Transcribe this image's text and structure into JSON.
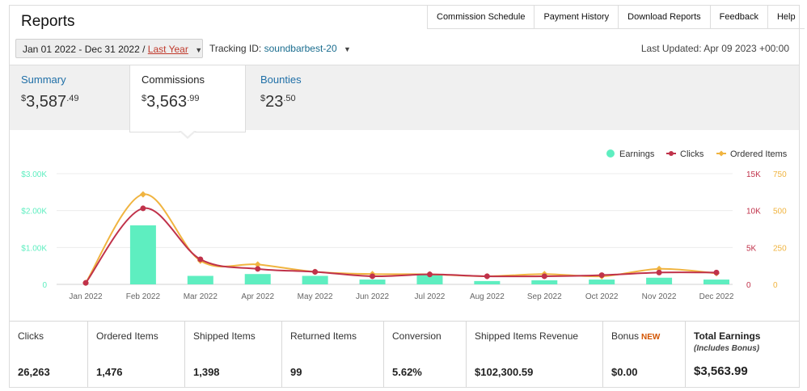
{
  "header": {
    "title": "Reports",
    "nav": [
      "Commission Schedule",
      "Payment History",
      "Download Reports",
      "Feedback",
      "Help"
    ]
  },
  "filters": {
    "date_range": "Jan 01 2022 - Dec 31 2022 /",
    "date_preset": "Last Year",
    "tracking_label": "Tracking ID:",
    "tracking_id": "soundbarbest-20",
    "last_updated": "Last Updated: Apr 09 2023 +00:00"
  },
  "tabs": [
    {
      "label": "Summary",
      "dollar": "$",
      "whole": "3,587",
      "cents": ".49",
      "active": false
    },
    {
      "label": "Commissions",
      "dollar": "$",
      "whole": "3,563",
      "cents": ".99",
      "active": true
    },
    {
      "label": "Bounties",
      "dollar": "$",
      "whole": "23",
      "cents": ".50",
      "active": false
    }
  ],
  "chart_data": {
    "type": "bar",
    "categories": [
      "Jan 2022",
      "Feb 2022",
      "Mar 2022",
      "Apr 2022",
      "May 2022",
      "Jun 2022",
      "Jul 2022",
      "Aug 2022",
      "Sep 2022",
      "Oct 2022",
      "Nov 2022",
      "Dec 2022"
    ],
    "series": [
      {
        "name": "Earnings",
        "type": "bar",
        "axis": "left",
        "color": "#5eeec0",
        "values": [
          0,
          1600,
          230,
          280,
          230,
          130,
          260,
          90,
          110,
          130,
          180,
          130
        ]
      },
      {
        "name": "Clicks",
        "type": "line",
        "axis": "right1",
        "color": "#c0324a",
        "values": [
          200,
          10300,
          3400,
          2100,
          1700,
          1100,
          1350,
          1100,
          1100,
          1250,
          1600,
          1600
        ]
      },
      {
        "name": "Ordered Items",
        "type": "line",
        "axis": "right2",
        "color": "#f0b440",
        "values": [
          10,
          610,
          160,
          135,
          85,
          70,
          68,
          55,
          70,
          55,
          105,
          75
        ]
      }
    ],
    "left_axis": {
      "ticks": [
        "0",
        "$1.00K",
        "$2.00K",
        "$3.00K"
      ],
      "max": 3000,
      "color": "#5eeec0"
    },
    "right_axis_1": {
      "ticks": [
        "0",
        "5K",
        "10K",
        "15K"
      ],
      "max": 15000,
      "color": "#c0324a"
    },
    "right_axis_2": {
      "ticks": [
        "0",
        "250",
        "500",
        "750"
      ],
      "max": 750,
      "color": "#f0b440"
    },
    "legend_position": "top-right",
    "grid": true
  },
  "stats": [
    {
      "label": "Clicks",
      "value": "26,263"
    },
    {
      "label": "Ordered Items",
      "value": "1,476"
    },
    {
      "label": "Shipped Items",
      "value": "1,398"
    },
    {
      "label": "Returned Items",
      "value": "99"
    },
    {
      "label": "Conversion",
      "value": "5.62%"
    },
    {
      "label": "Shipped Items Revenue",
      "value": "$102,300.59"
    },
    {
      "label": "Bonus",
      "badge": "NEW",
      "value": "$0.00"
    },
    {
      "label": "Total Earnings",
      "sub": "(Includes Bonus)",
      "value": "$3,563.99"
    }
  ]
}
